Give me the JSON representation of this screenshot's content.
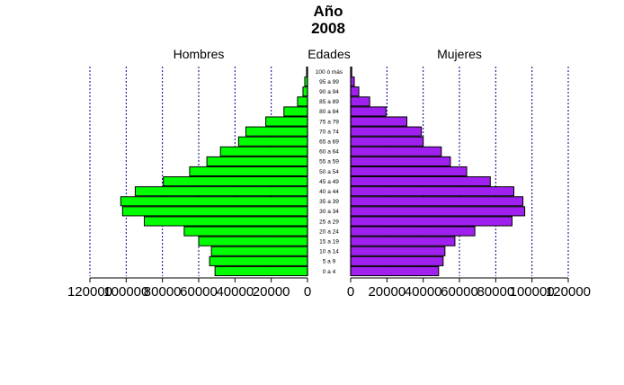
{
  "chart_data": {
    "type": "bar",
    "title": "Año",
    "subtitle": "2008",
    "center_label": "Edades",
    "left_label": "Hombres",
    "right_label": "Mujeres",
    "categories": [
      "100 ó más",
      "95 a 99",
      "90 a 94",
      "85 a 89",
      "80 a 84",
      "75 a 79",
      "70 a 74",
      "65 a 69",
      "60 a 64",
      "55 a 59",
      "50 a 54",
      "45 a 49",
      "40 a 44",
      "35 a 39",
      "30 a 34",
      "25 a 29",
      "20 a 24",
      "15 a 19",
      "10 a 14",
      "5 a 9",
      "0 a 4"
    ],
    "series": [
      {
        "name": "Hombres",
        "color": "#00ff00",
        "values": [
          500,
          1500,
          2500,
          5500,
          13000,
          23000,
          34000,
          38000,
          48000,
          55500,
          65000,
          79500,
          95000,
          103000,
          102000,
          90000,
          68000,
          60000,
          53000,
          54000,
          51000
        ]
      },
      {
        "name": "Mujeres",
        "color": "#a020f0",
        "values": [
          600,
          2000,
          4500,
          10500,
          19500,
          31000,
          39000,
          40000,
          50000,
          55000,
          64000,
          77000,
          90000,
          95000,
          96000,
          89000,
          68500,
          57500,
          52000,
          51000,
          48500
        ]
      }
    ],
    "xlim": [
      0,
      120000
    ],
    "xticks": [
      "120000",
      "100000",
      "80000",
      "60000",
      "40000",
      "20000",
      "0"
    ],
    "xticks_right": [
      "0",
      "20000",
      "40000",
      "60000",
      "80000",
      "100000",
      "120000"
    ],
    "grid_values": [
      20000,
      40000,
      60000,
      80000,
      100000,
      120000
    ],
    "grid": true,
    "grid_color": "#00008b"
  }
}
